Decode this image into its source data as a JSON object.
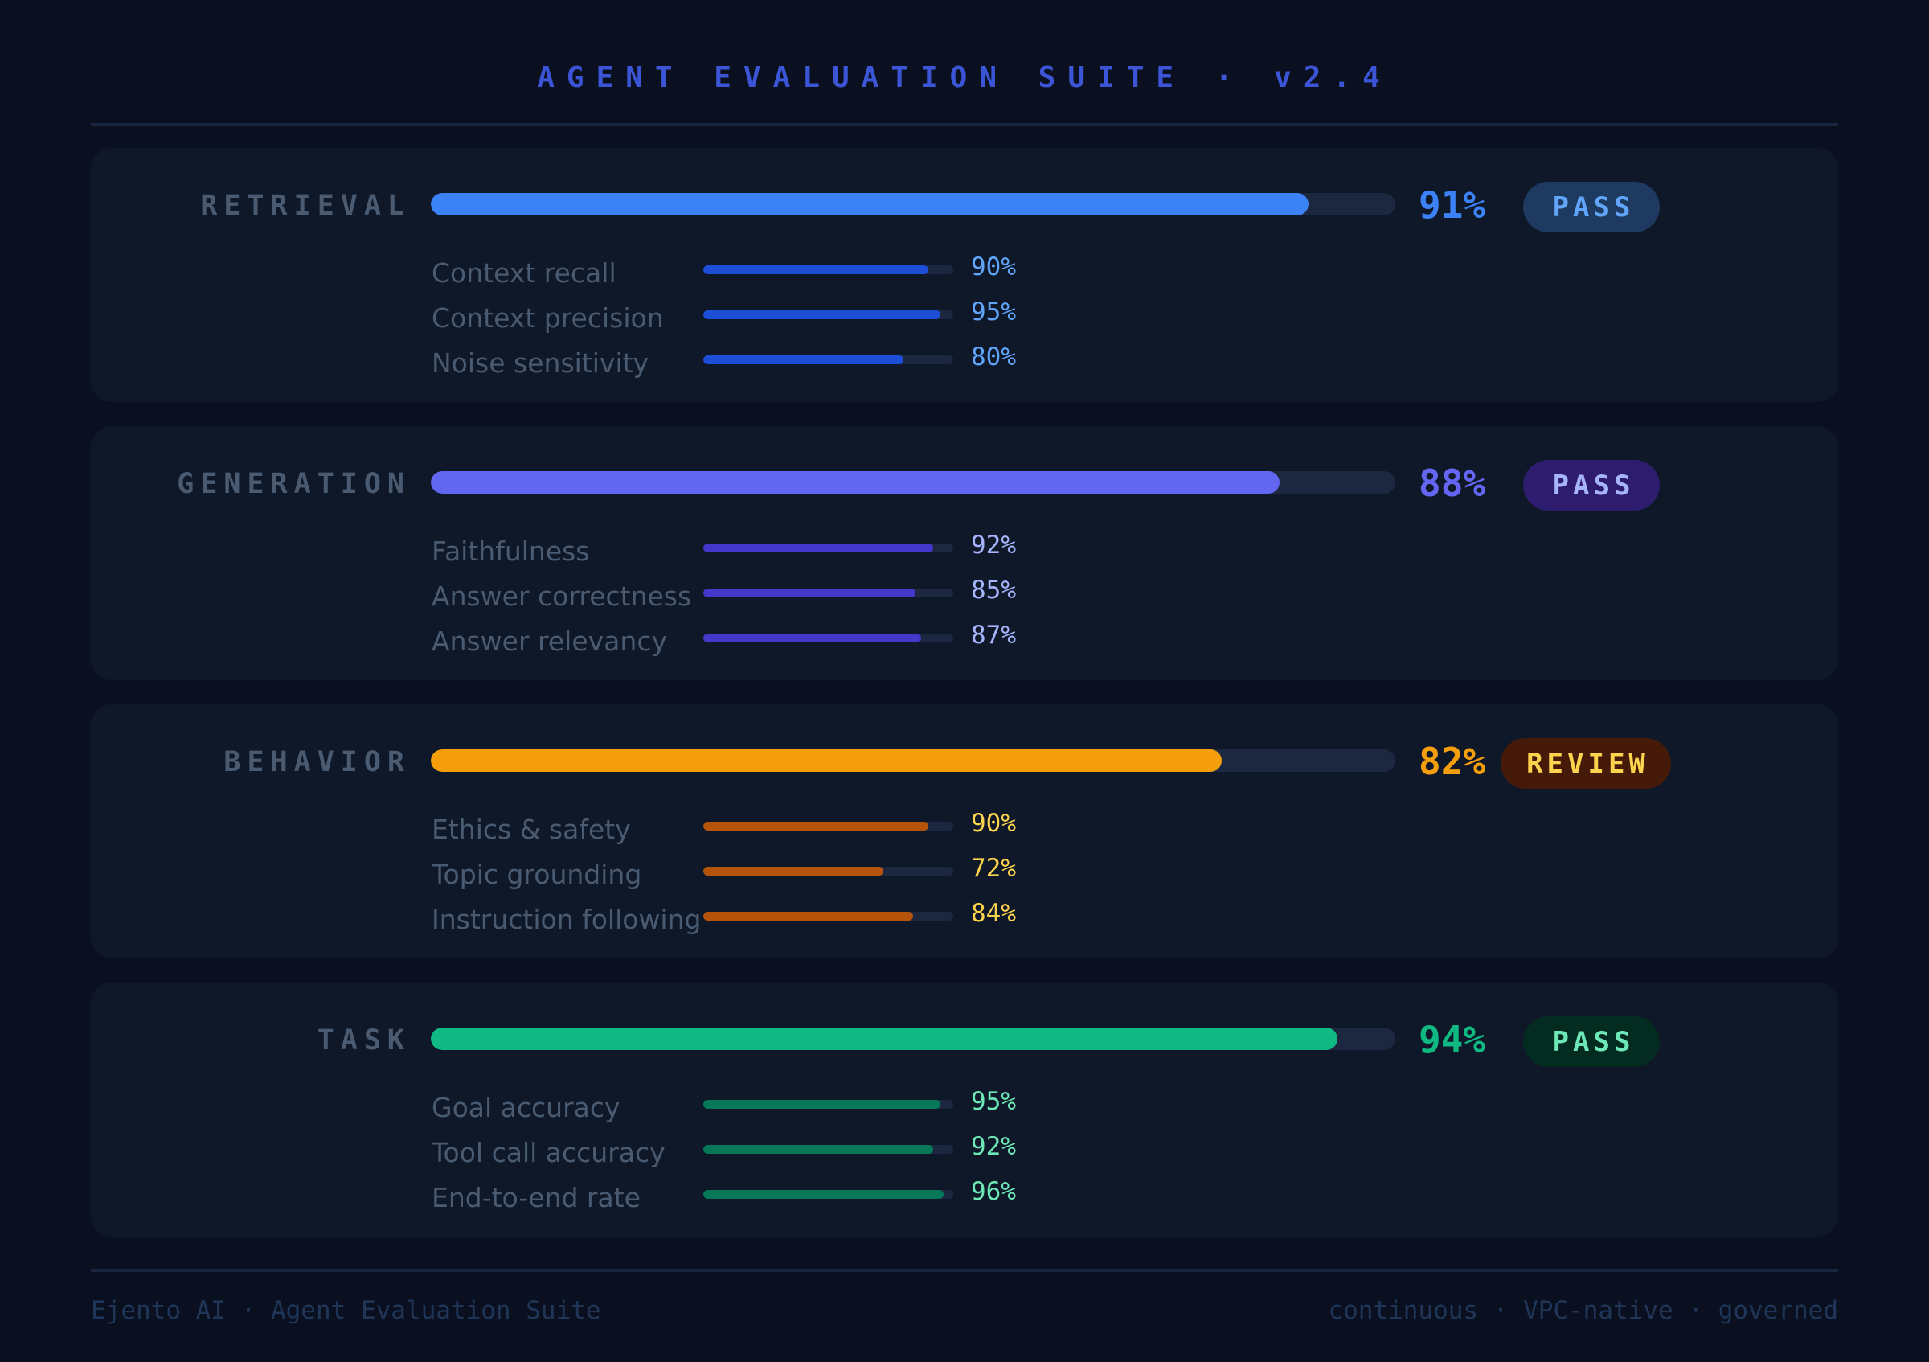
{
  "header": {
    "title": "AGENT EVALUATION SUITE · v2.4"
  },
  "categories": [
    {
      "name": "RETRIEVAL",
      "score": 91,
      "score_label": "91%",
      "status": "PASS",
      "colors": {
        "main": "#3b82f6",
        "score": "#3b82f6",
        "sub": "#1d4ed8",
        "sub_text": "#60a5fa",
        "pill_bg": "#1e3a60",
        "pill_text": "#60a5fa"
      },
      "metrics": [
        {
          "label": "Context recall",
          "value": 90,
          "value_label": "90%"
        },
        {
          "label": "Context precision",
          "value": 95,
          "value_label": "95%"
        },
        {
          "label": "Noise sensitivity",
          "value": 80,
          "value_label": "80%"
        }
      ]
    },
    {
      "name": "GENERATION",
      "score": 88,
      "score_label": "88%",
      "status": "PASS",
      "colors": {
        "main": "#6366f1",
        "score": "#6366f1",
        "sub": "#4338ca",
        "sub_text": "#a5b4fc",
        "pill_bg": "#2e1d6e",
        "pill_text": "#a5b4fc"
      },
      "metrics": [
        {
          "label": "Faithfulness",
          "value": 92,
          "value_label": "92%"
        },
        {
          "label": "Answer correctness",
          "value": 85,
          "value_label": "85%"
        },
        {
          "label": "Answer relevancy",
          "value": 87,
          "value_label": "87%"
        }
      ]
    },
    {
      "name": "BEHAVIOR",
      "score": 82,
      "score_label": "82%",
      "status": "REVIEW",
      "colors": {
        "main": "#f59e0b",
        "score": "#f59e0b",
        "sub": "#b45309",
        "sub_text": "#fcd34d",
        "pill_bg": "#451a08",
        "pill_text": "#fcd34d"
      },
      "metrics": [
        {
          "label": "Ethics & safety",
          "value": 90,
          "value_label": "90%"
        },
        {
          "label": "Topic grounding",
          "value": 72,
          "value_label": "72%"
        },
        {
          "label": "Instruction following",
          "value": 84,
          "value_label": "84%"
        }
      ]
    },
    {
      "name": "TASK",
      "score": 94,
      "score_label": "94%",
      "status": "PASS",
      "colors": {
        "main": "#10b981",
        "score": "#10b981",
        "sub": "#047857",
        "sub_text": "#6ee7b7",
        "pill_bg": "#032b1f",
        "pill_text": "#6ee7b7"
      },
      "metrics": [
        {
          "label": "Goal accuracy",
          "value": 95,
          "value_label": "95%"
        },
        {
          "label": "Tool call accuracy",
          "value": 92,
          "value_label": "92%"
        },
        {
          "label": "End-to-end rate",
          "value": 96,
          "value_label": "96%"
        }
      ]
    }
  ],
  "footer": {
    "left": "Ejento AI · Agent Evaluation Suite",
    "right": "continuous · VPC-native · governed"
  },
  "chart_data": {
    "type": "bar",
    "title": "AGENT EVALUATION SUITE · v2.4",
    "orientation": "horizontal",
    "xlim": [
      0,
      100
    ],
    "unit": "%",
    "categories": [
      "RETRIEVAL",
      "GENERATION",
      "BEHAVIOR",
      "TASK"
    ],
    "values": [
      91,
      88,
      82,
      94
    ],
    "status": [
      "PASS",
      "PASS",
      "REVIEW",
      "PASS"
    ],
    "sub_metrics": [
      {
        "category": "RETRIEVAL",
        "labels": [
          "Context recall",
          "Context precision",
          "Noise sensitivity"
        ],
        "values": [
          90,
          95,
          80
        ]
      },
      {
        "category": "GENERATION",
        "labels": [
          "Faithfulness",
          "Answer correctness",
          "Answer relevancy"
        ],
        "values": [
          92,
          85,
          87
        ]
      },
      {
        "category": "BEHAVIOR",
        "labels": [
          "Ethics & safety",
          "Topic grounding",
          "Instruction following"
        ],
        "values": [
          90,
          72,
          84
        ]
      },
      {
        "category": "TASK",
        "labels": [
          "Goal accuracy",
          "Tool call accuracy",
          "End-to-end rate"
        ],
        "values": [
          95,
          92,
          96
        ]
      }
    ]
  }
}
